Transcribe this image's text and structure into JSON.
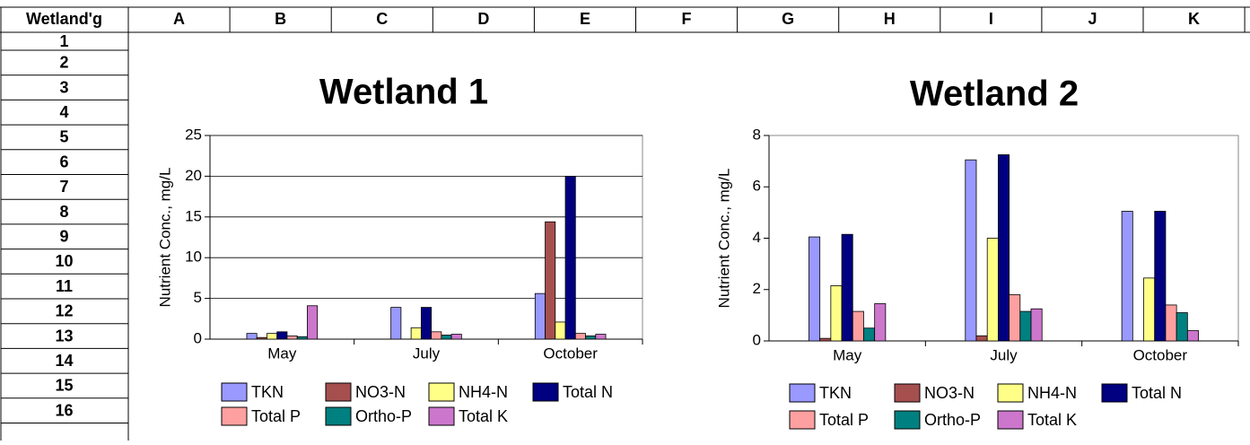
{
  "sheet": {
    "corner": "Wetland'g",
    "columns": [
      "A",
      "B",
      "C",
      "D",
      "E",
      "F",
      "G",
      "H",
      "I",
      "J",
      "K"
    ],
    "rows": [
      "1",
      "2",
      "3",
      "4",
      "5",
      "6",
      "7",
      "8",
      "9",
      "10",
      "11",
      "12",
      "13",
      "14",
      "15",
      "16"
    ]
  },
  "chart_data": [
    {
      "type": "bar",
      "title": "Wetland 1",
      "y_label": "Nutrient Conc., mg/L",
      "categories": [
        "May",
        "July",
        "October"
      ],
      "ylim": [
        0,
        25
      ],
      "yticks": [
        0,
        5,
        10,
        15,
        20,
        25
      ],
      "grid": true,
      "series": [
        {
          "name": "TKN",
          "color": "#9999ff",
          "values": [
            0.7,
            3.9,
            5.6
          ]
        },
        {
          "name": "NO3-N",
          "color": "#a64f4f",
          "values": [
            0.2,
            0,
            14.4
          ]
        },
        {
          "name": "NH4-N",
          "color": "#ffff88",
          "values": [
            0.7,
            1.4,
            2.1
          ]
        },
        {
          "name": "Total N",
          "color": "#000080",
          "values": [
            0.9,
            3.9,
            20.0
          ]
        },
        {
          "name": "Total P",
          "color": "#ffa0a0",
          "values": [
            0.4,
            0.9,
            0.7
          ]
        },
        {
          "name": "Ortho-P",
          "color": "#008080",
          "values": [
            0.3,
            0.5,
            0.4
          ]
        },
        {
          "name": "Total K",
          "color": "#cc77cc",
          "values": [
            4.1,
            0.6,
            0.6
          ]
        }
      ]
    },
    {
      "type": "bar",
      "title": "Wetland 2",
      "y_label": "Nutrient Conc., mg/L",
      "categories": [
        "May",
        "July",
        "October"
      ],
      "ylim": [
        0,
        8
      ],
      "yticks": [
        0,
        2,
        4,
        6,
        8
      ],
      "grid": false,
      "series": [
        {
          "name": "TKN",
          "color": "#9999ff",
          "values": [
            4.05,
            7.05,
            5.05
          ]
        },
        {
          "name": "NO3-N",
          "color": "#a64f4f",
          "values": [
            0.1,
            0.2,
            0
          ]
        },
        {
          "name": "NH4-N",
          "color": "#ffff88",
          "values": [
            2.15,
            4.0,
            2.45
          ]
        },
        {
          "name": "Total N",
          "color": "#000080",
          "values": [
            4.15,
            7.25,
            5.05
          ]
        },
        {
          "name": "Total P",
          "color": "#ffa0a0",
          "values": [
            1.15,
            1.8,
            1.4
          ]
        },
        {
          "name": "Ortho-P",
          "color": "#008080",
          "values": [
            0.5,
            1.15,
            1.1
          ]
        },
        {
          "name": "Total K",
          "color": "#cc77cc",
          "values": [
            1.45,
            1.25,
            0.4
          ]
        }
      ]
    }
  ]
}
